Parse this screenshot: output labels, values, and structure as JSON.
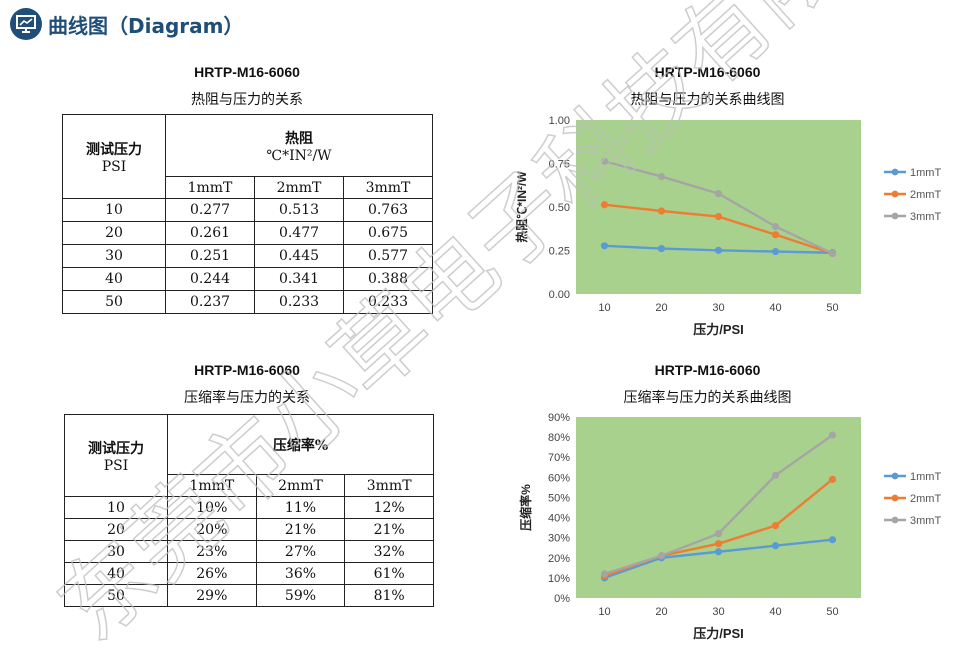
{
  "header": {
    "title": "曲线图（Diagram）",
    "icon": "chart-board-icon"
  },
  "watermark": {
    "text": "东莞市小草电子科技有限公司"
  },
  "thermal": {
    "table": {
      "title": "HRTP-M16-6060",
      "subtitle": "热阻与压力的关系",
      "row_header_line1": "测试压力",
      "row_header_line2": "PSI",
      "value_header_line1": "热阻",
      "value_header_line2": "℃*IN²/W",
      "columns": [
        "1mmT",
        "2mmT",
        "3mmT"
      ],
      "rows": [
        {
          "psi": "10",
          "v": [
            "0.277",
            "0.513",
            "0.763"
          ]
        },
        {
          "psi": "20",
          "v": [
            "0.261",
            "0.477",
            "0.675"
          ]
        },
        {
          "psi": "30",
          "v": [
            "0.251",
            "0.445",
            "0.577"
          ]
        },
        {
          "psi": "40",
          "v": [
            "0.244",
            "0.341",
            "0.388"
          ]
        },
        {
          "psi": "50",
          "v": [
            "0.237",
            "0.233",
            "0.233"
          ]
        }
      ]
    },
    "chart_title": "HRTP-M16-6060",
    "chart_subtitle": "热阻与压力的关系曲线图"
  },
  "compression": {
    "table": {
      "title": "HRTP-M16-6060",
      "subtitle": "压缩率与压力的关系",
      "row_header_line1": "测试压力",
      "row_header_line2": "PSI",
      "value_header_line1": "压缩率%",
      "columns": [
        "1mmT",
        "2mmT",
        "3mmT"
      ],
      "rows": [
        {
          "psi": "10",
          "v": [
            "10%",
            "11%",
            "12%"
          ]
        },
        {
          "psi": "20",
          "v": [
            "20%",
            "21%",
            "21%"
          ]
        },
        {
          "psi": "30",
          "v": [
            "23%",
            "27%",
            "32%"
          ]
        },
        {
          "psi": "40",
          "v": [
            "26%",
            "36%",
            "61%"
          ]
        },
        {
          "psi": "50",
          "v": [
            "29%",
            "59%",
            "81%"
          ]
        }
      ]
    },
    "chart_title": "HRTP-M16-6060",
    "chart_subtitle": "压缩率与压力的关系曲线图"
  },
  "chart_data": [
    {
      "type": "line",
      "title": "HRTP-M16-6060",
      "subtitle": "热阻与压力的关系曲线图",
      "xlabel": "压力/PSI",
      "ylabel": "热阻℃*IN²/W",
      "x": [
        10,
        20,
        30,
        40,
        50
      ],
      "ylim": [
        0,
        1.0
      ],
      "yticks": [
        0,
        0.25,
        0.5,
        0.75,
        1.0
      ],
      "ytick_labels": [
        "0.00",
        "0.25",
        "0.50",
        "0.75",
        "1.00"
      ],
      "grid": false,
      "legend": "right",
      "plot_bg": "#a9d18e",
      "series": [
        {
          "name": "1mmT",
          "color": "#5b9bd5",
          "values": [
            0.277,
            0.261,
            0.251,
            0.244,
            0.237
          ]
        },
        {
          "name": "2mmT",
          "color": "#ed7d31",
          "values": [
            0.513,
            0.477,
            0.445,
            0.341,
            0.233
          ]
        },
        {
          "name": "3mmT",
          "color": "#a5a5a5",
          "values": [
            0.763,
            0.675,
            0.577,
            0.388,
            0.233
          ]
        }
      ]
    },
    {
      "type": "line",
      "title": "HRTP-M16-6060",
      "subtitle": "压缩率与压力的关系曲线图",
      "xlabel": "压力/PSI",
      "ylabel": "压缩率%",
      "x": [
        10,
        20,
        30,
        40,
        50
      ],
      "ylim": [
        0,
        90
      ],
      "yticks": [
        0,
        10,
        20,
        30,
        40,
        50,
        60,
        70,
        80,
        90
      ],
      "ytick_labels": [
        "0%",
        "10%",
        "20%",
        "30%",
        "40%",
        "50%",
        "60%",
        "70%",
        "80%",
        "90%"
      ],
      "grid": false,
      "legend": "right",
      "plot_bg": "#a9d18e",
      "series": [
        {
          "name": "1mmT",
          "color": "#5b9bd5",
          "values": [
            10,
            20,
            23,
            26,
            29
          ]
        },
        {
          "name": "2mmT",
          "color": "#ed7d31",
          "values": [
            11,
            21,
            27,
            36,
            59
          ]
        },
        {
          "name": "3mmT",
          "color": "#a5a5a5",
          "values": [
            12,
            21,
            32,
            61,
            81
          ]
        }
      ]
    }
  ]
}
